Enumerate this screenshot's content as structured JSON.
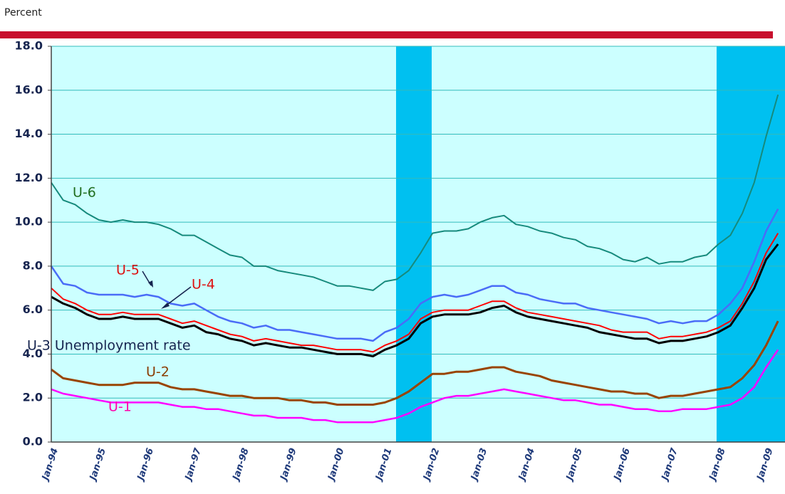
{
  "chart_data": {
    "type": "line",
    "y_label": "Percent",
    "categories": [
      "Jan-94",
      null,
      null,
      null,
      "Jan-95",
      null,
      null,
      null,
      "Jan-96",
      null,
      null,
      null,
      "Jan-97",
      null,
      null,
      null,
      "Jan-98",
      null,
      null,
      null,
      "Jan-99",
      null,
      null,
      null,
      "Jan-00",
      null,
      null,
      null,
      "Jan-01",
      null,
      null,
      null,
      "Jan-02",
      null,
      null,
      null,
      "Jan-03",
      null,
      null,
      null,
      "Jan-04",
      null,
      null,
      null,
      "Jan-05",
      null,
      null,
      null,
      "Jan-06",
      null,
      null,
      null,
      "Jan-07",
      null,
      null,
      null,
      "Jan-08",
      null,
      null,
      null,
      "Jan-09",
      null
    ],
    "ylim": [
      0,
      18
    ],
    "yticks": [
      {
        "value": 0,
        "label": "0.0"
      },
      {
        "value": 2,
        "label": "2.0"
      },
      {
        "value": 4,
        "label": "4.0"
      },
      {
        "value": 6,
        "label": "6.0"
      },
      {
        "value": 8,
        "label": "8.0"
      },
      {
        "value": 10,
        "label": "10.0"
      },
      {
        "value": 12,
        "label": "12.0"
      },
      {
        "value": 14,
        "label": "14.0"
      },
      {
        "value": 16,
        "label": "16.0"
      },
      {
        "value": 18,
        "label": "18.0"
      }
    ],
    "grid": true,
    "series": [
      {
        "name": "U-6",
        "color": "#168a7c",
        "values": [
          11.8,
          11.0,
          10.8,
          10.4,
          10.1,
          10.0,
          10.1,
          10.0,
          10.0,
          9.9,
          9.7,
          9.4,
          9.4,
          9.1,
          8.8,
          8.5,
          8.4,
          8.0,
          8.0,
          7.8,
          7.7,
          7.6,
          7.5,
          7.3,
          7.1,
          7.1,
          7.0,
          6.9,
          7.3,
          7.4,
          7.8,
          8.6,
          9.5,
          9.6,
          9.6,
          9.7,
          10.0,
          10.2,
          10.3,
          9.9,
          9.8,
          9.6,
          9.5,
          9.3,
          9.2,
          8.9,
          8.8,
          8.6,
          8.3,
          8.2,
          8.4,
          8.1,
          8.2,
          8.2,
          8.4,
          8.5,
          9.0,
          9.4,
          10.4,
          11.8,
          13.9,
          15.8
        ]
      },
      {
        "name": "U-5",
        "color": "#4a6cf7",
        "values": [
          8.0,
          7.2,
          7.1,
          6.8,
          6.7,
          6.7,
          6.7,
          6.6,
          6.7,
          6.6,
          6.3,
          6.2,
          6.3,
          6.0,
          5.7,
          5.5,
          5.4,
          5.2,
          5.3,
          5.1,
          5.1,
          5.0,
          4.9,
          4.8,
          4.7,
          4.7,
          4.7,
          4.6,
          5.0,
          5.2,
          5.6,
          6.3,
          6.6,
          6.7,
          6.6,
          6.7,
          6.9,
          7.1,
          7.1,
          6.8,
          6.7,
          6.5,
          6.4,
          6.3,
          6.3,
          6.1,
          6.0,
          5.9,
          5.8,
          5.7,
          5.6,
          5.4,
          5.5,
          5.4,
          5.5,
          5.5,
          5.8,
          6.3,
          7.0,
          8.2,
          9.6,
          10.6
        ]
      },
      {
        "name": "U-4",
        "color": "#ff0000",
        "values": [
          7.0,
          6.5,
          6.3,
          6.0,
          5.8,
          5.8,
          5.9,
          5.8,
          5.8,
          5.8,
          5.6,
          5.4,
          5.5,
          5.3,
          5.1,
          4.9,
          4.8,
          4.6,
          4.7,
          4.6,
          4.5,
          4.4,
          4.4,
          4.3,
          4.2,
          4.2,
          4.2,
          4.1,
          4.4,
          4.6,
          4.9,
          5.6,
          5.9,
          6.0,
          6.0,
          6.0,
          6.2,
          6.4,
          6.4,
          6.1,
          5.9,
          5.8,
          5.7,
          5.6,
          5.5,
          5.4,
          5.3,
          5.1,
          5.0,
          5.0,
          5.0,
          4.7,
          4.8,
          4.8,
          4.9,
          5.0,
          5.2,
          5.5,
          6.3,
          7.3,
          8.6,
          9.5
        ]
      },
      {
        "name": "U-3 Unemployment rate",
        "color": "#000000",
        "values": [
          6.6,
          6.3,
          6.1,
          5.8,
          5.6,
          5.6,
          5.7,
          5.6,
          5.6,
          5.6,
          5.4,
          5.2,
          5.3,
          5.0,
          4.9,
          4.7,
          4.6,
          4.4,
          4.5,
          4.4,
          4.3,
          4.3,
          4.2,
          4.1,
          4.0,
          4.0,
          4.0,
          3.9,
          4.2,
          4.4,
          4.7,
          5.4,
          5.7,
          5.8,
          5.8,
          5.8,
          5.9,
          6.1,
          6.2,
          5.9,
          5.7,
          5.6,
          5.5,
          5.4,
          5.3,
          5.2,
          5.0,
          4.9,
          4.8,
          4.7,
          4.7,
          4.5,
          4.6,
          4.6,
          4.7,
          4.8,
          5.0,
          5.3,
          6.1,
          7.0,
          8.3,
          9.0
        ]
      },
      {
        "name": "U-2",
        "color": "#994400",
        "values": [
          3.3,
          2.9,
          2.8,
          2.7,
          2.6,
          2.6,
          2.6,
          2.7,
          2.7,
          2.7,
          2.5,
          2.4,
          2.4,
          2.3,
          2.2,
          2.1,
          2.1,
          2.0,
          2.0,
          2.0,
          1.9,
          1.9,
          1.8,
          1.8,
          1.7,
          1.7,
          1.7,
          1.7,
          1.8,
          2.0,
          2.3,
          2.7,
          3.1,
          3.1,
          3.2,
          3.2,
          3.3,
          3.4,
          3.4,
          3.2,
          3.1,
          3.0,
          2.8,
          2.7,
          2.6,
          2.5,
          2.4,
          2.3,
          2.3,
          2.2,
          2.2,
          2.0,
          2.1,
          2.1,
          2.2,
          2.3,
          2.4,
          2.5,
          2.9,
          3.5,
          4.4,
          5.5
        ]
      },
      {
        "name": "U-1",
        "color": "#ff00ff",
        "values": [
          2.4,
          2.2,
          2.1,
          2.0,
          1.9,
          1.8,
          1.8,
          1.8,
          1.8,
          1.8,
          1.7,
          1.6,
          1.6,
          1.5,
          1.5,
          1.4,
          1.3,
          1.2,
          1.2,
          1.1,
          1.1,
          1.1,
          1.0,
          1.0,
          0.9,
          0.9,
          0.9,
          0.9,
          1.0,
          1.1,
          1.3,
          1.6,
          1.8,
          2.0,
          2.1,
          2.1,
          2.2,
          2.3,
          2.4,
          2.3,
          2.2,
          2.1,
          2.0,
          1.9,
          1.9,
          1.8,
          1.7,
          1.7,
          1.6,
          1.5,
          1.5,
          1.4,
          1.4,
          1.5,
          1.5,
          1.5,
          1.6,
          1.7,
          2.0,
          2.5,
          3.4,
          4.2
        ]
      }
    ]
  }
}
